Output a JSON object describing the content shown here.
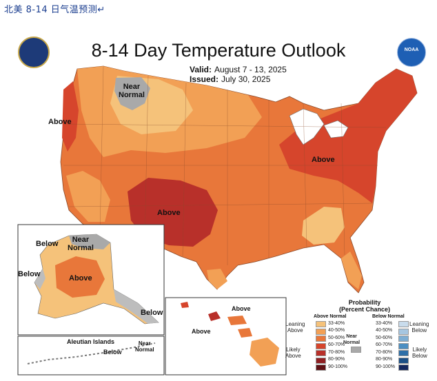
{
  "caption": "北美 8-14 日气温预测↵",
  "title": "8-14 Day Temperature Outlook",
  "valid_label": "Valid:",
  "valid_value": "August 7 - 13, 2025",
  "issued_label": "Issued:",
  "issued_value": "July 30, 2025",
  "logos": {
    "left": "department-seal-icon",
    "right": "noaa-logo-icon",
    "noaa_text": "NOAA"
  },
  "map_labels": {
    "near_normal_nw": "Near\nNormal",
    "above_west": "Above",
    "above_east": "Above",
    "above_southwest": "Above",
    "ak_below_north": "Below",
    "ak_near_normal": "Near\nNormal",
    "ak_below_west": "Below",
    "ak_above": "Above",
    "ak_below_se": "Below",
    "aleutian_title": "Aleutian Islands",
    "aleutian_below": "Below",
    "aleutian_near": "Near\nNormal",
    "hi_above_1": "Above",
    "hi_above_2": "Above"
  },
  "legend": {
    "title": "Probability\n(Percent Chance)",
    "above_head": "Above Normal",
    "below_head": "Below Normal",
    "near_head": "Near\nNormal",
    "leaning_above": "Leaning\nAbove",
    "likely_above": "Likely\nAbove",
    "leaning_below": "Leaning\nBelow",
    "likely_below": "Likely\nBelow",
    "rows": [
      "33-40%",
      "40-50%",
      "50-60%",
      "60-70%",
      "70-80%",
      "80-90%",
      "90-100%"
    ],
    "above_colors": [
      "#f5c27a",
      "#f2a055",
      "#e8773a",
      "#d6452c",
      "#b8302a",
      "#8f1f22",
      "#5e1014"
    ],
    "below_colors": [
      "#c9dcec",
      "#a6c6e0",
      "#7eaed3",
      "#4c8fc2",
      "#2d6fa8",
      "#1b4f86",
      "#13275e"
    ],
    "near_color": "#a9a9a9"
  }
}
